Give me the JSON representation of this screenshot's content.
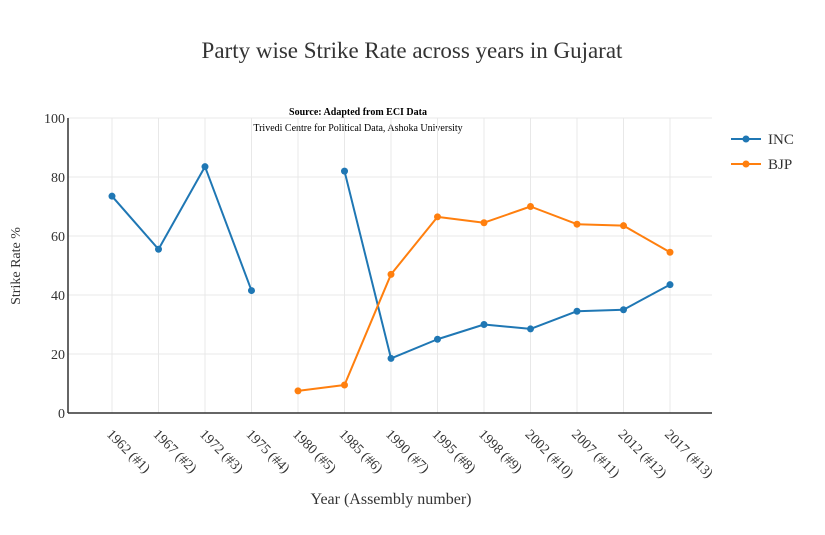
{
  "chart_data": {
    "type": "line",
    "title": "Party wise Strike Rate across years in Gujarat",
    "annotation": {
      "line1": "Source: Adapted from ECI Data",
      "line2": "Trivedi Centre for Political Data, Ashoka University"
    },
    "xlabel": "Year (Assembly number)",
    "ylabel": "Strike Rate %",
    "ylim": [
      0,
      100
    ],
    "yticks": [
      0,
      20,
      40,
      60,
      80,
      100
    ],
    "categories": [
      "1962 (#1)",
      "1967 (#2)",
      "1972 (#3)",
      "1975 (#4)",
      "1980 (#5)",
      "1985 (#6)",
      "1990 (#7)",
      "1995 (#8)",
      "1998 (#9)",
      "2002 (#10)",
      "2007 (#11)",
      "2012 (#12)",
      "2017 (#13)"
    ],
    "grid": true,
    "legend_position": "top-right",
    "series": [
      {
        "name": "INC",
        "color": "#1f77b4",
        "values": [
          73.5,
          55.5,
          83.5,
          41.5,
          null,
          82,
          18.5,
          25,
          30,
          28.5,
          34.5,
          35,
          43.5
        ]
      },
      {
        "name": "BJP",
        "color": "#ff7f0e",
        "values": [
          null,
          null,
          null,
          null,
          7.5,
          9.5,
          47,
          66.5,
          64.5,
          70,
          64,
          63.5,
          54.5
        ]
      }
    ]
  }
}
